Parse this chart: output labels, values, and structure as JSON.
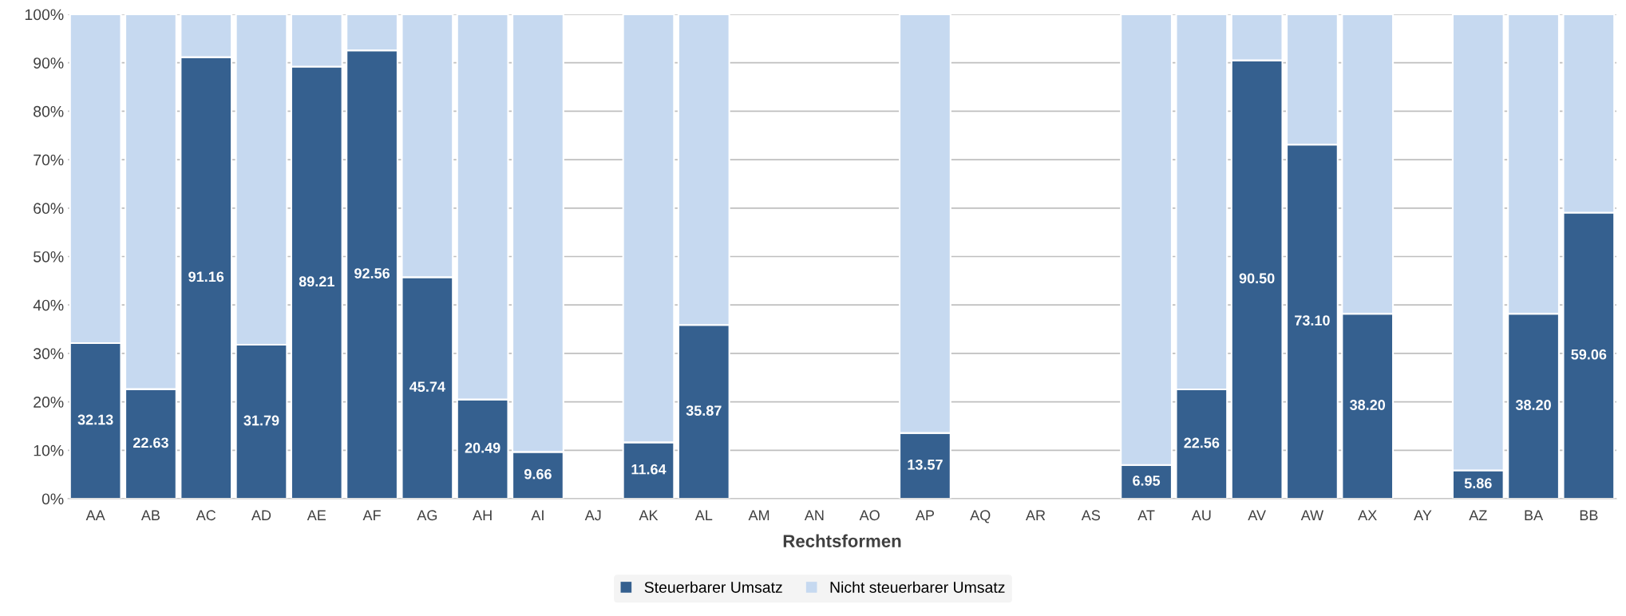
{
  "chart_data": {
    "type": "bar",
    "stacked": true,
    "xlabel": "Rechtsformen",
    "categories": [
      "AA",
      "AB",
      "AC",
      "AD",
      "AE",
      "AF",
      "AG",
      "AH",
      "AI",
      "AJ",
      "AK",
      "AL",
      "AM",
      "AN",
      "AO",
      "AP",
      "AQ",
      "AR",
      "AS",
      "AT",
      "AU",
      "AV",
      "AW",
      "AX",
      "AY",
      "AZ",
      "BA",
      "BB"
    ],
    "series": [
      {
        "name": "Steuerbarer Umsatz",
        "color": "#35608f",
        "values": [
          32.13,
          22.63,
          91.16,
          31.79,
          89.21,
          92.56,
          45.74,
          20.49,
          9.66,
          null,
          11.64,
          35.87,
          null,
          null,
          null,
          13.57,
          null,
          null,
          null,
          6.95,
          22.56,
          90.5,
          73.1,
          38.2,
          null,
          5.86,
          38.2,
          59.06
        ],
        "value_labels": [
          "32.13",
          "22.63",
          "91.16",
          "31.79",
          "89.21",
          "92.56",
          "45.74",
          "20.49",
          "9.66",
          null,
          "11.64",
          "35.87",
          null,
          null,
          null,
          "13.57",
          null,
          null,
          null,
          "6.95",
          "22.56",
          "90.50",
          "73.10",
          "38.20",
          null,
          "5.86",
          "38.20",
          "59.06"
        ]
      },
      {
        "name": "Nicht steuerbarer Umsatz",
        "color": "#c6d9f0",
        "values": [
          67.87,
          77.37,
          8.84,
          68.21,
          10.79,
          7.44,
          54.26,
          79.51,
          90.34,
          null,
          88.36,
          64.13,
          null,
          null,
          null,
          86.43,
          null,
          null,
          null,
          93.05,
          77.44,
          9.5,
          26.9,
          61.8,
          null,
          94.14,
          61.8,
          40.94
        ]
      }
    ],
    "ylim": [
      0,
      100
    ],
    "yticks": [
      {
        "value": 0,
        "label": "0%"
      },
      {
        "value": 10,
        "label": "10%"
      },
      {
        "value": 20,
        "label": "20%"
      },
      {
        "value": 30,
        "label": "30%"
      },
      {
        "value": 40,
        "label": "40%"
      },
      {
        "value": 50,
        "label": "50%"
      },
      {
        "value": 60,
        "label": "60%"
      },
      {
        "value": 70,
        "label": "70%"
      },
      {
        "value": 80,
        "label": "80%"
      },
      {
        "value": 90,
        "label": "90%"
      },
      {
        "value": 100,
        "label": "100%"
      }
    ],
    "grid": "y",
    "legend": "bottom"
  }
}
